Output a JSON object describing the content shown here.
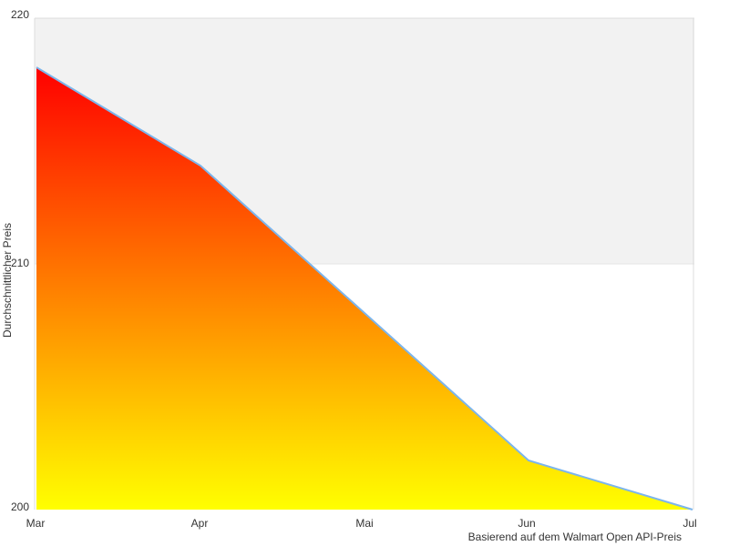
{
  "chart": {
    "colors": {
      "line": "#7cb5ec",
      "gradient_top": "#ff0000",
      "gradient_bottom": "#ffff00",
      "band": "#f2f2f2",
      "grid": "#e6e6e6",
      "text": "#333333"
    }
  },
  "chart_data": {
    "type": "area",
    "categories": [
      "Mar",
      "Apr",
      "Mai",
      "Jun",
      "Jul"
    ],
    "values": [
      218,
      214,
      208,
      202,
      200
    ],
    "x": [
      0,
      1,
      2,
      3,
      4
    ],
    "xlabel": "Basierend auf dem Walmart Open API-Preis",
    "ylabel": "Durchschnittlicher Preis",
    "ylim": [
      200,
      220
    ],
    "yticks": [
      "220",
      "210",
      "200"
    ],
    "ytick_values": [
      220,
      210,
      200
    ],
    "title": "",
    "legend": "none",
    "grid": "horizontal gridlines at 200/210/220, shaded plot band 210-220",
    "plot_band": {
      "from": 210,
      "to": 220
    },
    "line_color": "#7cb5ec",
    "fill_gradient": [
      "#ff0000",
      "#ffff00"
    ]
  }
}
